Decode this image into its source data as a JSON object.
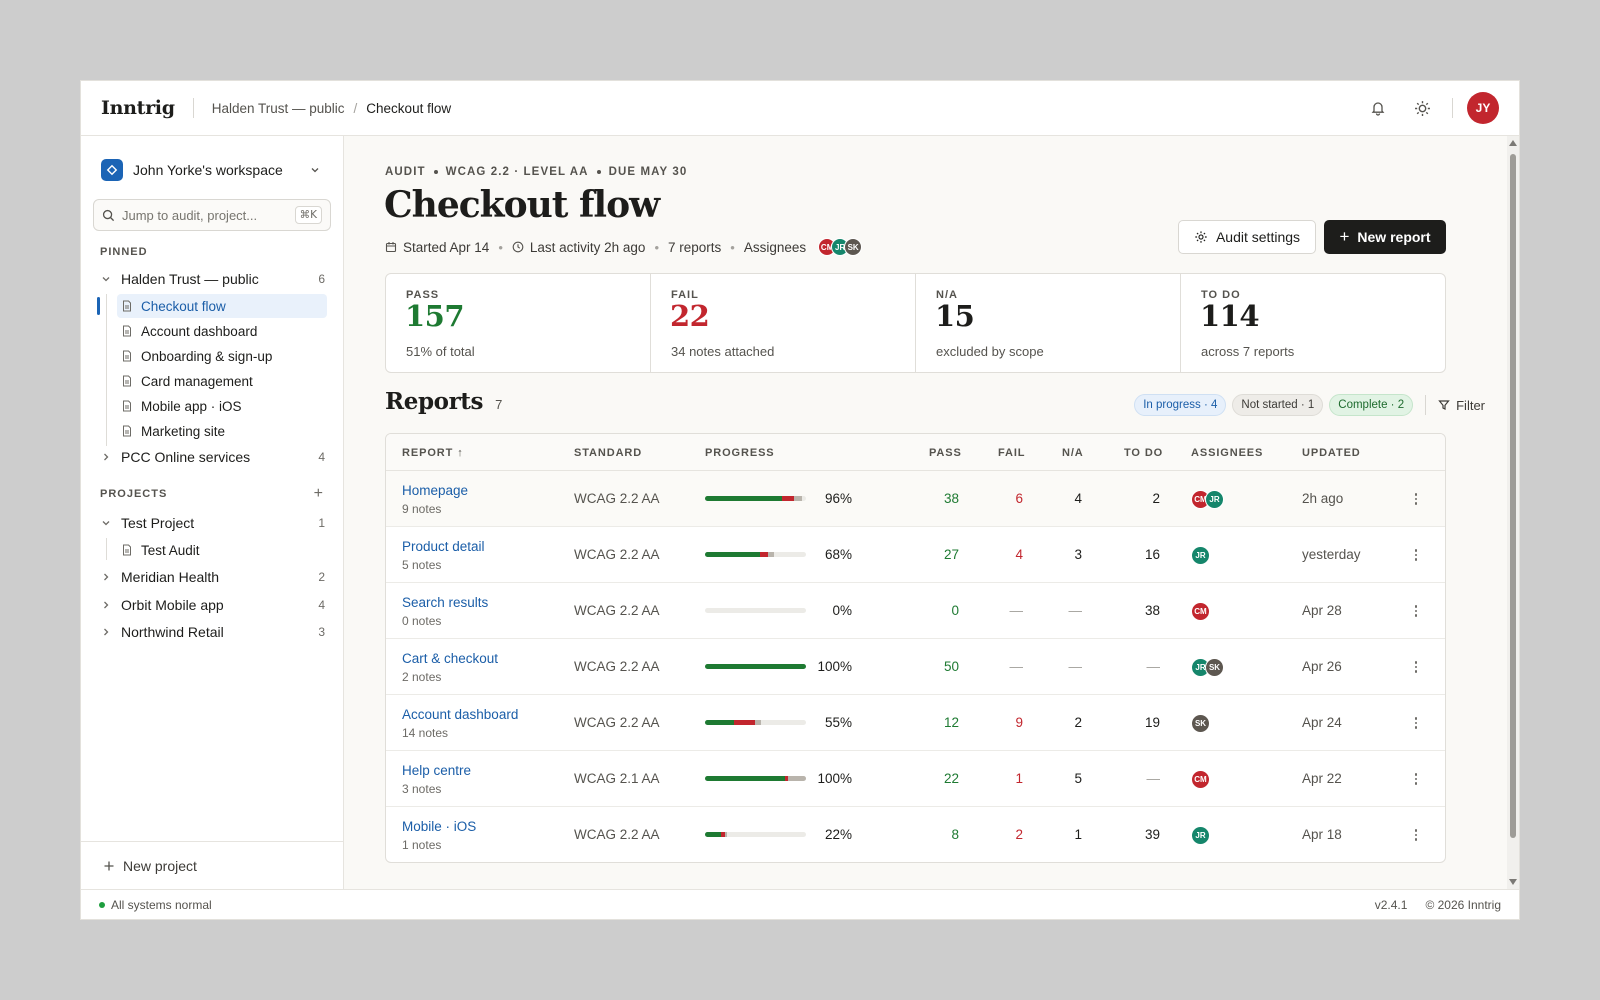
{
  "app": {
    "name": "Inntrig"
  },
  "breadcrumb": {
    "parent": "Halden Trust — public",
    "separator": "/",
    "current": "Checkout flow"
  },
  "user": {
    "initials": "JY"
  },
  "sidebar": {
    "workspace": "John Yorke's workspace",
    "search_placeholder": "Jump to audit, project...",
    "search_shortcut": "⌘K",
    "pinned_label": "PINNED",
    "pinned": {
      "label": "Halden Trust — public",
      "count": "6",
      "children": [
        "Checkout flow",
        "Account dashboard",
        "Onboarding & sign-up",
        "Card management",
        "Mobile app · iOS",
        "Marketing site"
      ],
      "active_child": "Checkout flow"
    },
    "pinned_other": {
      "label": "PCC Online services",
      "count": "4"
    },
    "projects_label": "PROJECTS",
    "projects": [
      {
        "label": "Test Project",
        "count": "1",
        "expanded": true,
        "children": [
          "Test Audit"
        ]
      },
      {
        "label": "Meridian Health",
        "count": "2"
      },
      {
        "label": "Orbit Mobile app",
        "count": "4"
      },
      {
        "label": "Northwind Retail",
        "count": "3"
      }
    ],
    "new_project": "New project"
  },
  "header": {
    "eyebrow": [
      "AUDIT",
      "WCAG 2.2 · LEVEL AA",
      "DUE MAY 30"
    ],
    "title": "Checkout flow",
    "started": "Started Apr 14",
    "last_activity": "Last activity 2h ago",
    "reports": "7 reports",
    "assignees_label": "Assignees",
    "assignees": [
      {
        "initials": "CM",
        "color": "#c2262e"
      },
      {
        "initials": "JR",
        "color": "#15866b"
      },
      {
        "initials": "SK",
        "color": "#5d5750"
      }
    ],
    "settings_label": "Audit settings",
    "new_report_label": "New report"
  },
  "stats": [
    {
      "label": "PASS",
      "value": "157",
      "desc": "51% of total",
      "color": "#1e7a32"
    },
    {
      "label": "FAIL",
      "value": "22",
      "desc": "34 notes attached",
      "color": "#c2262e"
    },
    {
      "label": "N/A",
      "value": "15",
      "desc": "excluded by scope",
      "color": "#1d1d1b"
    },
    {
      "label": "TO DO",
      "value": "114",
      "desc": "across 7 reports",
      "color": "#1d1d1b"
    }
  ],
  "reports": {
    "title": "Reports",
    "count": "7",
    "chips": {
      "in_progress": "In progress · 4",
      "not_started": "Not started · 1",
      "complete": "Complete · 2"
    },
    "filter_label": "Filter",
    "columns": [
      "REPORT ↑",
      "STANDARD",
      "PROGRESS",
      "PASS",
      "FAIL",
      "N/A",
      "TO DO",
      "ASSIGNEES",
      "UPDATED"
    ],
    "rows": [
      {
        "name": "Homepage",
        "notes": "9 notes",
        "standard": "WCAG 2.2 AA",
        "progress": "96%",
        "pass_frac": 0.76,
        "fail_frac": 0.12,
        "na_frac": 0.08,
        "pass": "38",
        "fail": "6",
        "na": "4",
        "todo": "2",
        "assignees": [
          {
            "initials": "CM",
            "color": "#c2262e"
          },
          {
            "initials": "JR",
            "color": "#15866b"
          }
        ],
        "updated": "2h ago"
      },
      {
        "name": "Product detail",
        "notes": "5 notes",
        "standard": "WCAG 2.2 AA",
        "progress": "68%",
        "pass_frac": 0.54,
        "fail_frac": 0.08,
        "na_frac": 0.06,
        "pass": "27",
        "fail": "4",
        "na": "3",
        "todo": "16",
        "assignees": [
          {
            "initials": "JR",
            "color": "#15866b"
          }
        ],
        "updated": "yesterday"
      },
      {
        "name": "Search results",
        "notes": "0 notes",
        "standard": "WCAG 2.2 AA",
        "progress": "0%",
        "pass_frac": 0,
        "fail_frac": 0,
        "na_frac": 0,
        "pass": "0",
        "fail": "—",
        "na": "—",
        "todo": "38",
        "assignees": [
          {
            "initials": "CM",
            "color": "#c2262e"
          }
        ],
        "updated": "Apr 28"
      },
      {
        "name": "Cart & checkout",
        "notes": "2 notes",
        "standard": "WCAG 2.2 AA",
        "progress": "100%",
        "pass_frac": 1,
        "fail_frac": 0,
        "na_frac": 0,
        "pass": "50",
        "fail": "—",
        "na": "—",
        "todo": "—",
        "assignees": [
          {
            "initials": "JR",
            "color": "#15866b"
          },
          {
            "initials": "SK",
            "color": "#5d5750"
          }
        ],
        "updated": "Apr 26"
      },
      {
        "name": "Account dashboard",
        "notes": "14 notes",
        "standard": "WCAG 2.2 AA",
        "progress": "55%",
        "pass_frac": 0.29,
        "fail_frac": 0.21,
        "na_frac": 0.05,
        "pass": "12",
        "fail": "9",
        "na": "2",
        "todo": "19",
        "assignees": [
          {
            "initials": "SK",
            "color": "#5d5750"
          }
        ],
        "updated": "Apr 24"
      },
      {
        "name": "Help centre",
        "notes": "3 notes",
        "standard": "WCAG 2.1 AA",
        "progress": "100%",
        "pass_frac": 0.79,
        "fail_frac": 0.03,
        "na_frac": 0.18,
        "pass": "22",
        "fail": "1",
        "na": "5",
        "todo": "—",
        "assignees": [
          {
            "initials": "CM",
            "color": "#c2262e"
          }
        ],
        "updated": "Apr 22"
      },
      {
        "name": "Mobile · iOS",
        "notes": "1 notes",
        "standard": "WCAG 2.2 AA",
        "progress": "22%",
        "pass_frac": 0.16,
        "fail_frac": 0.04,
        "na_frac": 0.02,
        "pass": "8",
        "fail": "2",
        "na": "1",
        "todo": "39",
        "assignees": [
          {
            "initials": "JR",
            "color": "#15866b"
          }
        ],
        "updated": "Apr 18"
      }
    ]
  },
  "statusbar": {
    "status": "All systems normal",
    "version": "v2.4.1",
    "copyright": "© 2026 Inntrig"
  },
  "colors": {
    "pass": "#1e7a32",
    "fail": "#c2262e",
    "na": "#b9b4ac",
    "accent": "#1b64b5"
  }
}
